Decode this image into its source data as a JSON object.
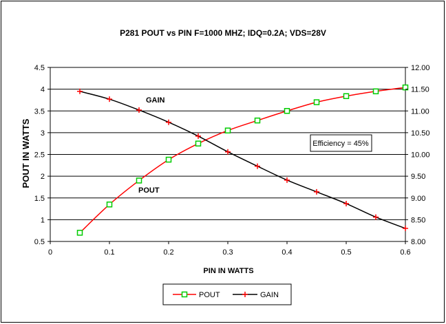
{
  "chart_data": {
    "type": "line",
    "title": "P281 POUT vs PIN  F=1000 MHZ; IDQ=0.2A; VDS=28V",
    "xlabel": "PIN IN WATTS",
    "ylabel": "POUT IN WATTS",
    "xlim": [
      0,
      0.6
    ],
    "ylim": [
      0.5,
      4.5
    ],
    "y2lim": [
      8.0,
      12.0
    ],
    "x_ticks": [
      "0",
      "0.1",
      "0.2",
      "0.3",
      "0.4",
      "0.5",
      "0.6"
    ],
    "y_ticks": [
      "0.5",
      "1",
      "1.5",
      "2",
      "2.5",
      "3",
      "3.5",
      "4",
      "4.5"
    ],
    "y2_ticks": [
      "8.00",
      "8.50",
      "9.00",
      "9.50",
      "10.00",
      "10.50",
      "11.00",
      "11.50",
      "12.00"
    ],
    "grid": "horizontal",
    "legend_position": "bottom",
    "series": [
      {
        "name": "POUT",
        "axis": "left",
        "color": "#ff0000",
        "marker_color": "#00cc00",
        "marker": "square",
        "x": [
          0.05,
          0.1,
          0.15,
          0.2,
          0.25,
          0.3,
          0.35,
          0.4,
          0.45,
          0.5,
          0.55,
          0.6
        ],
        "values": [
          0.7,
          1.35,
          1.9,
          2.38,
          2.75,
          3.05,
          3.28,
          3.5,
          3.7,
          3.84,
          3.95,
          4.04
        ]
      },
      {
        "name": "GAIN",
        "axis": "right",
        "color": "#000000",
        "marker_color": "#ff0000",
        "marker": "plus",
        "x": [
          0.05,
          0.1,
          0.15,
          0.2,
          0.25,
          0.3,
          0.35,
          0.4,
          0.45,
          0.5,
          0.55,
          0.6
        ],
        "values": [
          11.45,
          11.27,
          11.02,
          10.74,
          10.42,
          10.06,
          9.73,
          9.41,
          9.14,
          8.87,
          8.56,
          8.3
        ]
      }
    ],
    "annotations": {
      "gain_label": "GAIN",
      "pout_label": "POUT",
      "efficiency": "Efficiency = 45%"
    }
  }
}
